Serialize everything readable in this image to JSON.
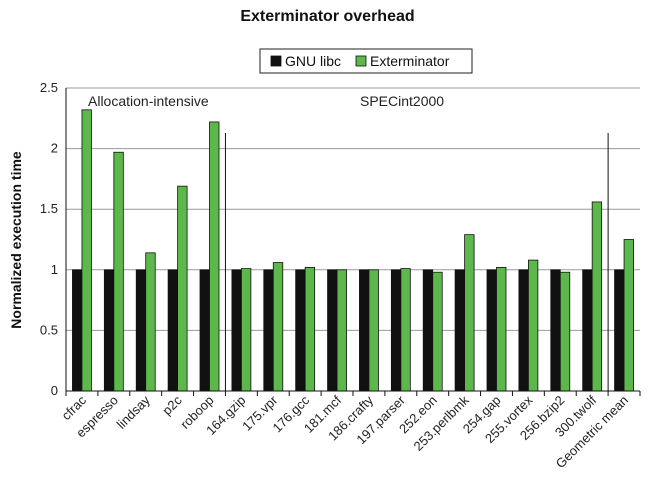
{
  "chart_data": {
    "type": "bar",
    "title": "Exterminator overhead",
    "xlabel": "",
    "ylabel": "Normalized execution time",
    "ylim": [
      0,
      2.5
    ],
    "yticks": [
      0,
      0.5,
      1,
      1.5,
      2,
      2.5
    ],
    "ytick_labels": [
      "0",
      "0.5",
      "1",
      "1.5",
      "2",
      "2.5"
    ],
    "grid": "y-major",
    "legend_position": "top-center",
    "categories": [
      "cfrac",
      "espresso",
      "lindsay",
      "p2c",
      "roboop",
      "164.gzip",
      "175.vpr",
      "176.gcc",
      "181.mcf",
      "186.crafty",
      "197.parser",
      "252.eon",
      "253.perlbmk",
      "254.gap",
      "255.vortex",
      "256.bzip2",
      "300.twolf",
      "Geometric mean"
    ],
    "series": [
      {
        "name": "GNU libc",
        "color": "#111111",
        "values": [
          1,
          1,
          1,
          1,
          1,
          1,
          1,
          1,
          1,
          1,
          1,
          1,
          1,
          1,
          1,
          1,
          1,
          1
        ]
      },
      {
        "name": "Exterminator",
        "color": "#5cb84a",
        "values": [
          2.32,
          1.97,
          1.14,
          1.69,
          2.22,
          1.01,
          1.06,
          1.02,
          1.0,
          1.0,
          1.01,
          0.98,
          1.29,
          1.02,
          1.08,
          0.98,
          1.56,
          1.25
        ]
      }
    ],
    "annotations": [
      {
        "id": "alloc",
        "text": "Allocation-intensive"
      },
      {
        "id": "spec",
        "text": "SPECint2000"
      }
    ]
  }
}
